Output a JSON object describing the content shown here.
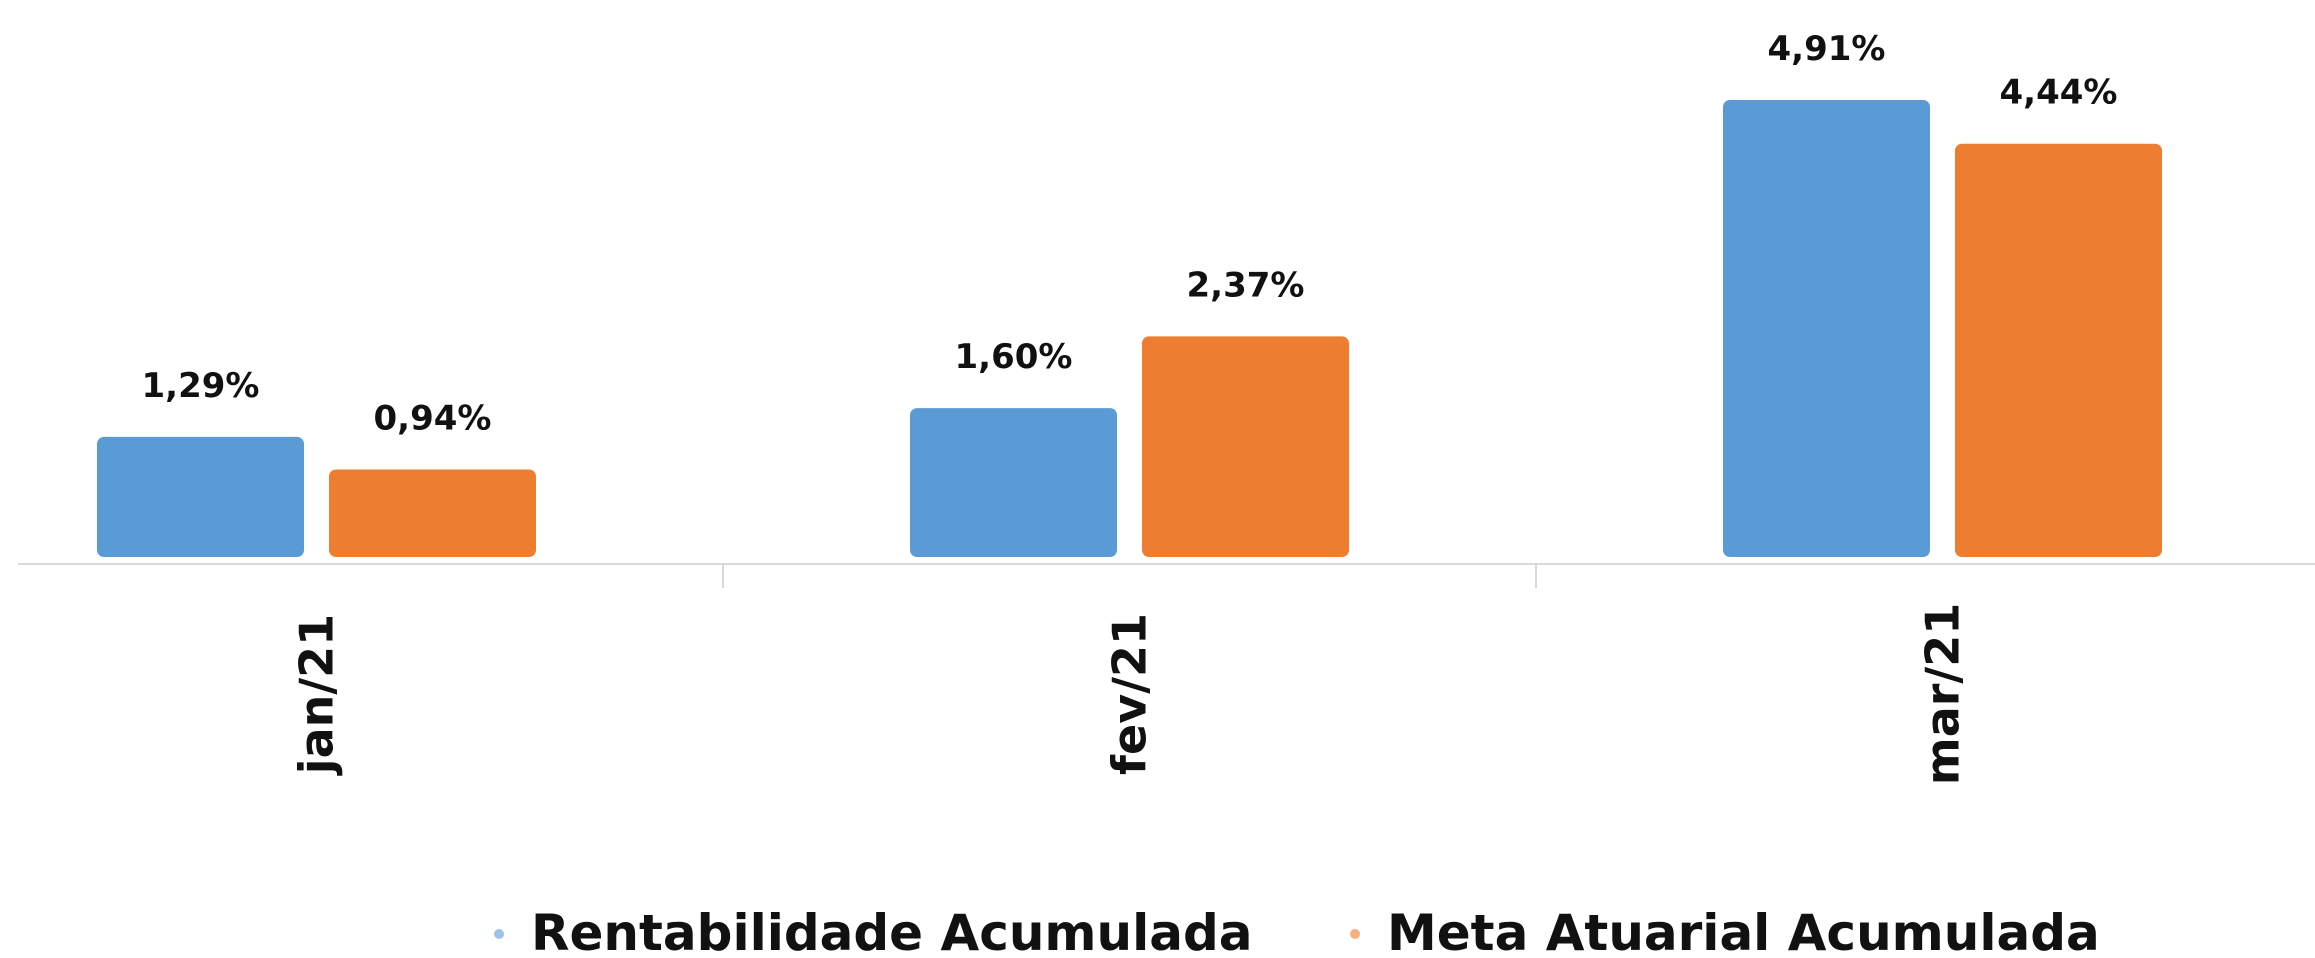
{
  "chart_data": {
    "type": "bar",
    "categories": [
      "jan/21",
      "fev/21",
      "mar/21"
    ],
    "series": [
      {
        "name": "Rentabilidade Acumulada",
        "color": "#5b9bd5",
        "values": [
          1.29,
          1.6,
          4.91
        ],
        "value_labels": [
          "1,29%",
          "1,60%",
          "4,91%"
        ]
      },
      {
        "name": "Meta Atuarial Acumulada",
        "color": "#ed7d31",
        "values": [
          0.94,
          2.37,
          4.44
        ],
        "value_labels": [
          "0,94%",
          "2,37%",
          "4,44%"
        ]
      }
    ],
    "legend": "bottom"
  }
}
